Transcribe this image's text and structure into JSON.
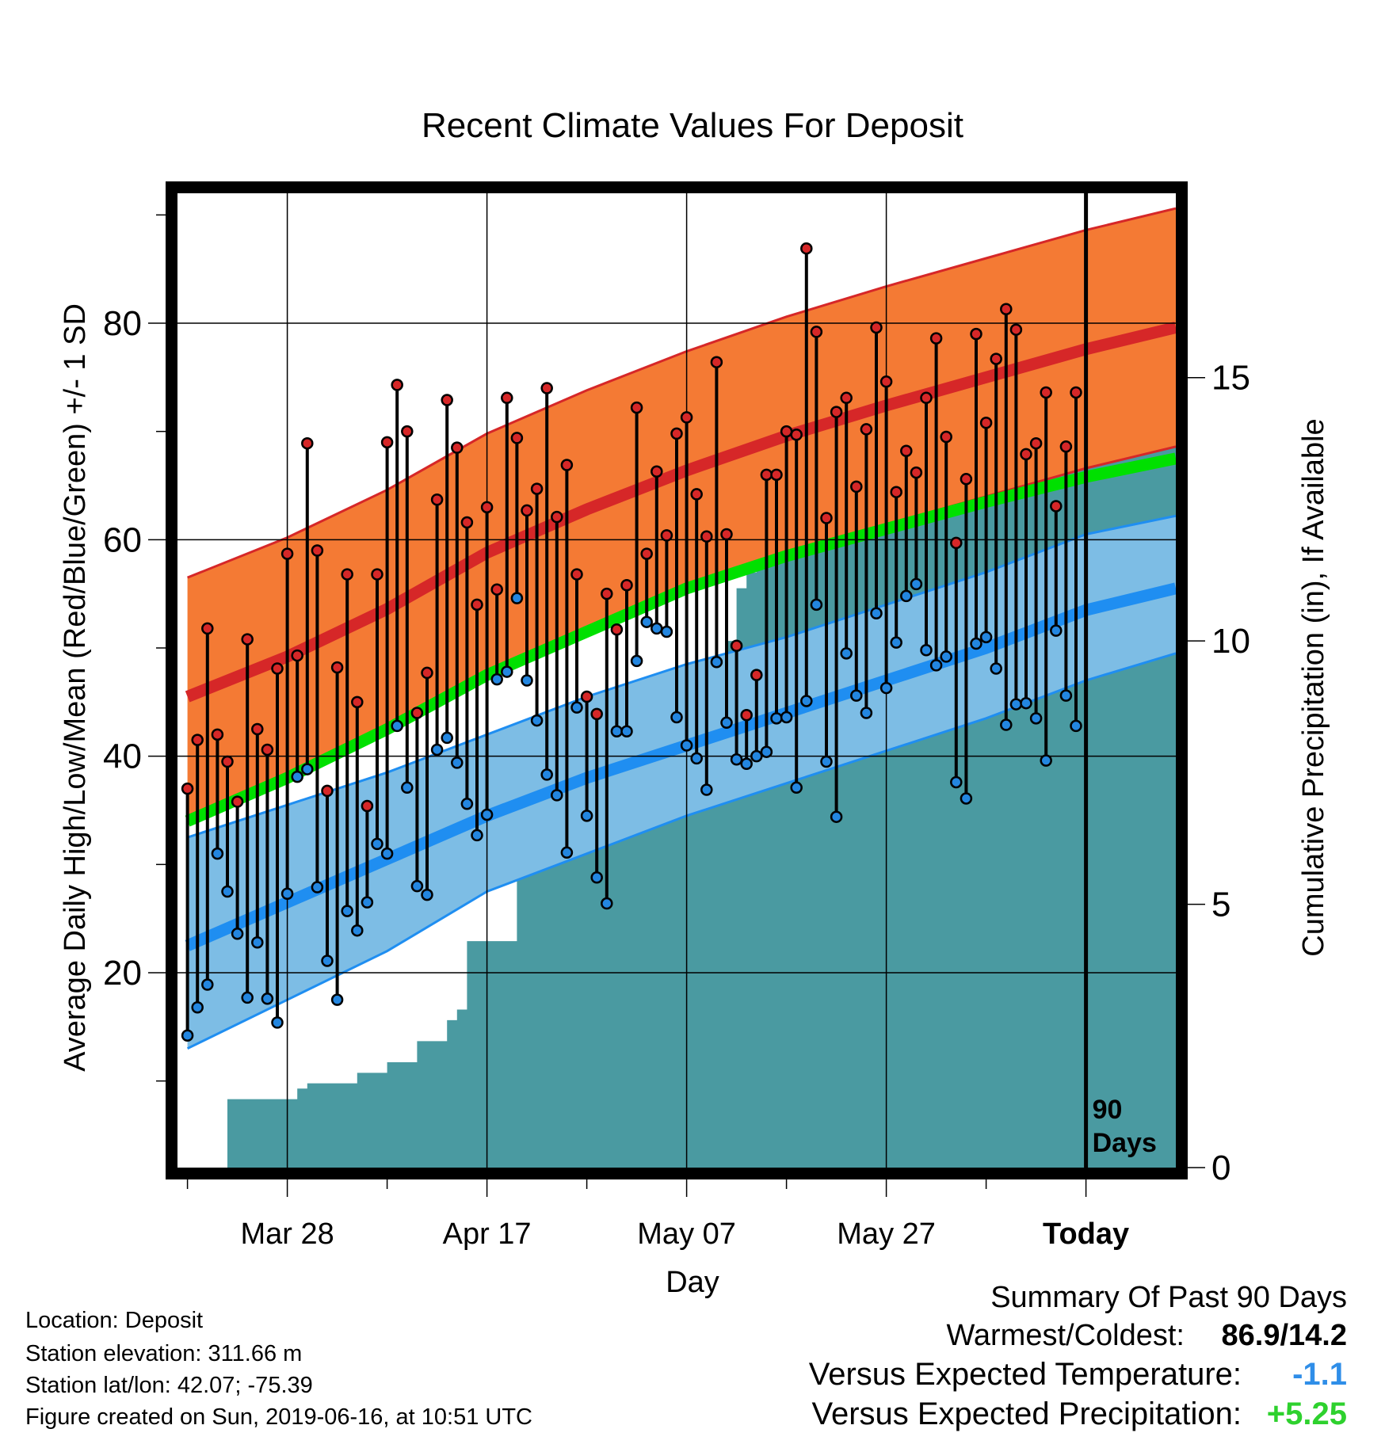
{
  "chart_data": {
    "type": "line",
    "title": "Recent Climate Values For Deposit",
    "xlabel": "Day",
    "ylabel_left": "Average Daily High/Low/Mean (Red/Blue/Green) +/- 1 SD",
    "ylabel_right": "Cumulative Precipitation (in), If Available",
    "x_ticks": [
      {
        "day": "2019-03-28",
        "label": "Mar 28"
      },
      {
        "day": "2019-04-17",
        "label": "Apr 17"
      },
      {
        "day": "2019-05-07",
        "label": "May 07"
      },
      {
        "day": "2019-05-27",
        "label": "May 27"
      },
      {
        "day": "2019-06-16",
        "label": "Today"
      }
    ],
    "xlim": [
      "2019-03-17",
      "2019-06-25"
    ],
    "ylim_left": [
      2,
      92
    ],
    "yticks_left": [
      20,
      40,
      60,
      80
    ],
    "ylim_right": [
      0,
      18.5
    ],
    "yticks_right": [
      0,
      5,
      10,
      15
    ],
    "today": "2019-06-16",
    "today_label": [
      "90",
      "Days"
    ],
    "colors": {
      "high_band": "#f47a34",
      "high_mean": "#d62728",
      "low_band": "#7dbde5",
      "low_mean": "#1f8ef1",
      "mean_line": "#00e000",
      "precip": "#4a9aa1",
      "high_point": "#d62728",
      "low_point": "#2386e0"
    },
    "normals": {
      "x": [
        "2019-03-18",
        "2019-03-28",
        "2019-04-07",
        "2019-04-17",
        "2019-04-27",
        "2019-05-07",
        "2019-05-17",
        "2019-05-27",
        "2019-06-06",
        "2019-06-16",
        "2019-06-25"
      ],
      "high_mean": [
        45.5,
        49.2,
        53.6,
        58.8,
        62.8,
        66.4,
        69.6,
        72.4,
        75.0,
        77.6,
        79.6
      ],
      "high_upper": [
        56.5,
        60.2,
        64.6,
        69.8,
        73.8,
        77.4,
        80.6,
        83.4,
        86.0,
        88.6,
        90.6
      ],
      "high_lower": [
        34.5,
        38.2,
        42.6,
        47.8,
        51.8,
        55.4,
        58.6,
        61.4,
        64.0,
        66.6,
        68.6
      ],
      "mean": [
        34.0,
        38.0,
        42.5,
        47.5,
        51.5,
        55.5,
        58.5,
        61.0,
        63.5,
        65.8,
        67.5
      ],
      "low_mean": [
        22.5,
        26.5,
        30.5,
        34.5,
        38.0,
        41.0,
        44.0,
        47.0,
        50.0,
        53.5,
        55.5
      ],
      "low_upper": [
        32.5,
        35.5,
        38.5,
        42.0,
        45.5,
        48.5,
        51.0,
        54.0,
        57.0,
        60.5,
        62.2
      ],
      "low_lower": [
        13.0,
        17.5,
        22.0,
        27.5,
        31.0,
        34.5,
        37.5,
        40.5,
        43.5,
        47.0,
        49.5
      ]
    },
    "series": [
      {
        "name": "High",
        "x_start": "2019-03-18",
        "values": [
          37,
          41.5,
          51.8,
          42,
          39.5,
          35.8,
          50.8,
          42.5,
          40.6,
          48.1,
          58.7,
          49.3,
          68.9,
          59,
          36.8,
          48.2,
          56.8,
          45,
          35.4,
          56.8,
          69,
          74.3,
          70,
          44,
          47.7,
          63.7,
          72.9,
          68.5,
          61.6,
          54,
          63,
          55.4,
          73.1,
          69.4,
          62.7,
          64.7,
          74,
          62.1,
          66.9,
          56.8,
          45.5,
          43.9,
          55,
          51.7,
          55.8,
          72.2,
          58.7,
          66.3,
          60.4,
          69.8,
          71.3,
          64.2,
          60.3,
          76.4,
          60.5,
          50.2,
          43.8,
          47.5,
          66,
          66,
          70,
          69.7,
          86.9,
          79.2,
          62,
          71.8,
          73.1,
          64.9,
          70.2,
          79.6,
          74.6,
          64.4,
          68.2,
          66.2,
          73.1,
          78.6,
          69.5,
          59.7,
          65.6,
          79,
          70.8,
          76.7,
          81.3,
          79.4,
          67.9,
          68.9,
          73.6,
          63.1,
          68.6,
          73.6
        ]
      },
      {
        "name": "Low",
        "x_start": "2019-03-18",
        "values": [
          14.2,
          16.8,
          18.9,
          31,
          27.5,
          23.6,
          17.7,
          22.8,
          17.6,
          15.4,
          27.3,
          38.1,
          38.8,
          27.9,
          21.1,
          17.5,
          25.7,
          23.9,
          26.5,
          31.9,
          31,
          42.8,
          37.1,
          28,
          27.2,
          40.6,
          41.7,
          39.4,
          35.6,
          32.7,
          34.6,
          47.1,
          47.8,
          54.6,
          47,
          43.3,
          38.3,
          36.4,
          31.1,
          44.5,
          34.5,
          28.8,
          26.4,
          42.3,
          42.3,
          48.8,
          52.4,
          51.8,
          51.5,
          43.6,
          41,
          39.8,
          36.9,
          48.7,
          43.1,
          39.7,
          39.3,
          40,
          40.4,
          43.5,
          43.6,
          37.1,
          45.1,
          54,
          39.5,
          34.4,
          49.5,
          45.6,
          44,
          53.2,
          46.3,
          50.5,
          54.8,
          55.9,
          49.8,
          48.4,
          49.2,
          37.6,
          36.1,
          50.4,
          51,
          48.1,
          42.9,
          44.8,
          44.9,
          43.5,
          39.6,
          51.6,
          45.6,
          42.8
        ]
      },
      {
        "name": "Precipitation",
        "x": [
          "2019-03-18",
          "2019-03-21",
          "2019-03-22",
          "2019-03-28",
          "2019-03-29",
          "2019-03-30",
          "2019-04-03",
          "2019-04-04",
          "2019-04-06",
          "2019-04-07",
          "2019-04-09",
          "2019-04-10",
          "2019-04-12",
          "2019-04-13",
          "2019-04-14",
          "2019-04-15",
          "2019-04-19",
          "2019-04-20",
          "2019-04-24",
          "2019-04-25",
          "2019-04-26",
          "2019-04-28",
          "2019-04-30",
          "2019-05-01",
          "2019-05-03",
          "2019-05-04",
          "2019-05-09",
          "2019-05-10",
          "2019-05-11",
          "2019-05-12",
          "2019-05-13",
          "2019-05-14",
          "2019-05-15",
          "2019-05-18",
          "2019-05-19",
          "2019-05-21",
          "2019-05-22",
          "2019-05-23",
          "2019-05-25",
          "2019-05-27",
          "2019-05-28",
          "2019-05-29",
          "2019-05-30",
          "2019-05-31",
          "2019-06-01",
          "2019-06-02",
          "2019-06-03",
          "2019-06-06",
          "2019-06-09",
          "2019-06-10",
          "2019-06-12",
          "2019-06-13",
          "2019-06-14",
          "2019-06-15",
          "2019-06-16",
          "2019-06-25"
        ],
        "values": [
          0,
          0,
          1.3,
          1.3,
          1.5,
          1.6,
          1.6,
          1.8,
          1.8,
          2.0,
          2.0,
          2.4,
          2.4,
          2.8,
          3.0,
          4.3,
          4.3,
          6.2,
          6.2,
          6.4,
          7.0,
          7.2,
          7.2,
          7.6,
          7.8,
          8.0,
          8.0,
          8.6,
          10.0,
          11.0,
          11.3,
          11.5,
          11.6,
          11.6,
          12.5,
          12.6,
          12.8,
          12.9,
          13.4,
          13.4,
          14.0,
          14.4,
          14.6,
          14.8,
          15.2,
          15.3,
          15.4,
          15.5,
          15.5,
          15.8,
          16.1,
          16.1,
          16.3,
          16.6,
          16.7,
          16.7
        ]
      }
    ]
  },
  "info": {
    "location": "Location: Deposit",
    "elevation": "Station elevation: 311.66 m",
    "latlon": "Station lat/lon: 42.07; -75.39",
    "created": "Figure created on Sun, 2019-06-16, at 10:51 UTC"
  },
  "summary": {
    "title": "Summary Of Past 90 Days",
    "warm_label": "Warmest/Coldest:",
    "warm_value": "86.9/14.2",
    "temp_label": "Versus Expected Temperature:",
    "temp_value": "-1.1",
    "temp_color": "#2f8ee8",
    "precip_label": "Versus Expected Precipitation:",
    "precip_value": "+5.25",
    "precip_color": "#2ed12e"
  }
}
